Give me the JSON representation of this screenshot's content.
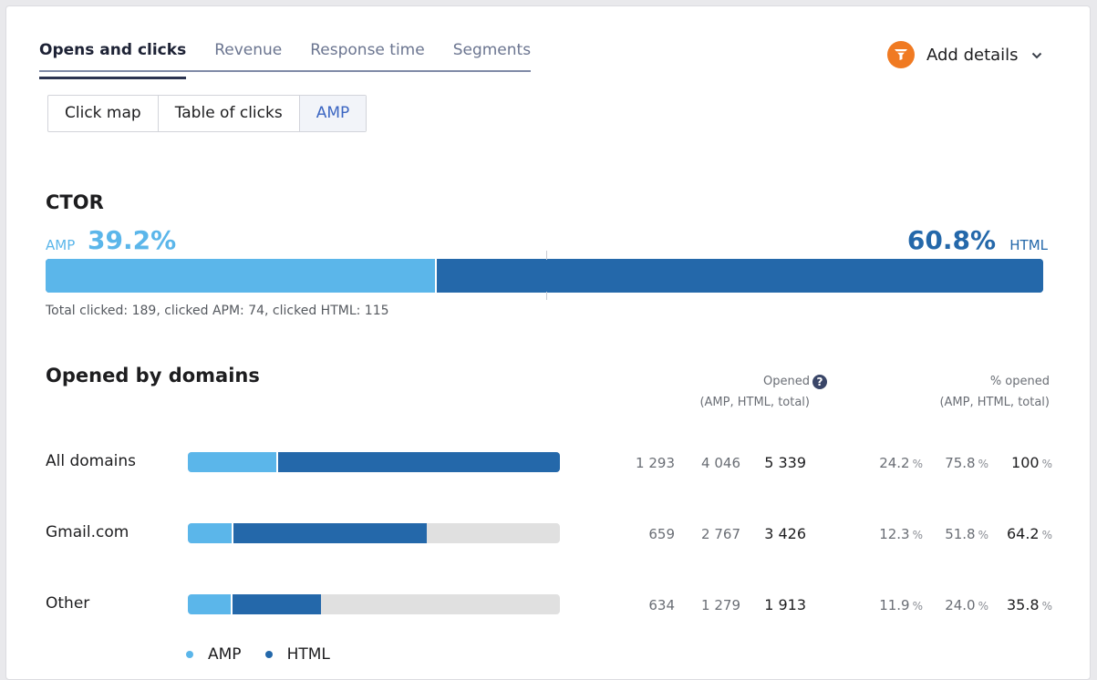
{
  "tabs": [
    {
      "label": "Opens and clicks",
      "active": true
    },
    {
      "label": "Revenue",
      "active": false
    },
    {
      "label": "Response time",
      "active": false
    },
    {
      "label": "Segments",
      "active": false
    }
  ],
  "add_details": {
    "label": "Add details",
    "icon": "funnel-icon",
    "accent": "#f07a22"
  },
  "view_switch": [
    "Click map",
    "Table of clicks",
    "AMP"
  ],
  "view_selected": "AMP",
  "ctor": {
    "title": "CTOR",
    "amp_label": "AMP",
    "amp_value": "39.2%",
    "html_label": "HTML",
    "html_value": "60.8%",
    "amp_fraction": 0.392,
    "note": "Total clicked: 189, clicked APM: 74, clicked HTML: 115"
  },
  "domains": {
    "title": "Opened by domains",
    "opened_head": "Opened",
    "opened_sub": "(AMP, HTML, total)",
    "pct_head": "% opened",
    "pct_sub": "(AMP, HTML, total)",
    "rows": [
      {
        "label": "All domains",
        "amp_pct": 24.2,
        "html_pct": 75.8,
        "amp": "1 293",
        "html": "4 046",
        "total": "5 339",
        "amp_p": "24.2",
        "html_p": "75.8",
        "total_p": "100",
        "unit": "%"
      },
      {
        "label": "Gmail.com",
        "amp_pct": 12.3,
        "html_pct": 51.8,
        "amp": "659",
        "html": "2 767",
        "total": "3 426",
        "amp_p": "12.3",
        "html_p": "51.8",
        "total_p": "64.2",
        "unit": "%"
      },
      {
        "label": "Other",
        "amp_pct": 11.9,
        "html_pct": 24.0,
        "amp": "634",
        "html": "1 279",
        "total": "1 913",
        "amp_p": "11.9",
        "html_p": "24.0",
        "total_p": "35.8",
        "unit": "%"
      }
    ]
  },
  "legend": [
    {
      "label": "AMP",
      "color": "#5bb6ea"
    },
    {
      "label": "HTML",
      "color": "#2468aa"
    }
  ]
}
